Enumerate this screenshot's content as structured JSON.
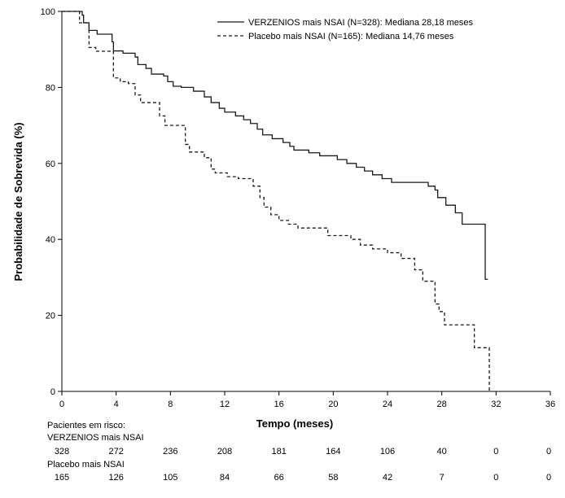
{
  "chart_data": {
    "type": "line",
    "xlabel": "Tempo (meses)",
    "ylabel": "Probabilidade de Sobrevida (%)",
    "xlim": [
      0,
      36
    ],
    "ylim": [
      0,
      100
    ],
    "xticks": [
      "0",
      "4",
      "8",
      "12",
      "16",
      "20",
      "24",
      "28",
      "32",
      "36"
    ],
    "yticks": [
      "0",
      "20",
      "40",
      "60",
      "80",
      "100"
    ],
    "grid": false,
    "legend_position": "top-right",
    "series": [
      {
        "name": "VERZENIOS mais NSAI (N=328): Mediana 28,18 meses",
        "style": "solid",
        "color": "#1a1a1a",
        "points": [
          [
            0,
            100
          ],
          [
            1.5,
            99
          ],
          [
            1.6,
            97
          ],
          [
            2,
            95
          ],
          [
            2.6,
            94
          ],
          [
            3.7,
            92
          ],
          [
            3.8,
            89.6
          ],
          [
            4.5,
            89
          ],
          [
            5.4,
            88
          ],
          [
            5.6,
            86
          ],
          [
            6.2,
            85
          ],
          [
            6.6,
            83.5
          ],
          [
            7.5,
            83
          ],
          [
            7.8,
            81.5
          ],
          [
            8.2,
            80.3
          ],
          [
            8.8,
            80
          ],
          [
            9.7,
            79
          ],
          [
            10.5,
            77.5
          ],
          [
            11,
            76
          ],
          [
            11.6,
            74.5
          ],
          [
            12,
            73.5
          ],
          [
            12.8,
            72.5
          ],
          [
            13.4,
            71.5
          ],
          [
            13.9,
            70.5
          ],
          [
            14.4,
            69
          ],
          [
            14.8,
            67.5
          ],
          [
            15.5,
            66.5
          ],
          [
            16.3,
            65.5
          ],
          [
            16.8,
            64.5
          ],
          [
            17.1,
            63.5
          ],
          [
            18.2,
            62.8
          ],
          [
            19,
            62
          ],
          [
            20.3,
            61
          ],
          [
            21,
            60
          ],
          [
            21.7,
            59
          ],
          [
            22.3,
            58
          ],
          [
            22.9,
            57
          ],
          [
            23.6,
            56
          ],
          [
            24.3,
            55
          ],
          [
            27,
            54
          ],
          [
            27.5,
            53
          ],
          [
            27.7,
            51
          ],
          [
            28.3,
            49
          ],
          [
            29,
            47
          ],
          [
            29.5,
            44
          ],
          [
            31.2,
            44
          ],
          [
            31.2,
            29.5
          ],
          [
            31.4,
            29.5
          ]
        ]
      },
      {
        "name": "Placebo mais NSAI (N=165): Mediana 14,76 meses",
        "style": "dashed",
        "color": "#1a1a1a",
        "points": [
          [
            0,
            100
          ],
          [
            1.3,
            97
          ],
          [
            2,
            90.5
          ],
          [
            2.5,
            89.5
          ],
          [
            3.7,
            89.5
          ],
          [
            3.8,
            82.5
          ],
          [
            4.3,
            81.5
          ],
          [
            4.9,
            81
          ],
          [
            5.4,
            78
          ],
          [
            5.8,
            76
          ],
          [
            7.1,
            76
          ],
          [
            7.2,
            72.5
          ],
          [
            7.6,
            70
          ],
          [
            9,
            70
          ],
          [
            9.1,
            65
          ],
          [
            9.4,
            63
          ],
          [
            10.5,
            61.5
          ],
          [
            11,
            58.5
          ],
          [
            11.3,
            57.5
          ],
          [
            12.2,
            56.5
          ],
          [
            13,
            56
          ],
          [
            14.1,
            54
          ],
          [
            14.6,
            51
          ],
          [
            14.9,
            48.5
          ],
          [
            15.4,
            46.5
          ],
          [
            16,
            45
          ],
          [
            16.7,
            44
          ],
          [
            17.4,
            43
          ],
          [
            19.5,
            43
          ],
          [
            19.6,
            41
          ],
          [
            21.3,
            40
          ],
          [
            22,
            38.5
          ],
          [
            22.9,
            37.5
          ],
          [
            24,
            36.5
          ],
          [
            25,
            35
          ],
          [
            26,
            32
          ],
          [
            26.6,
            29
          ],
          [
            27.3,
            29
          ],
          [
            27.5,
            23
          ],
          [
            27.8,
            21
          ],
          [
            28.2,
            17.5
          ],
          [
            30.1,
            17.5
          ],
          [
            30.4,
            11.5
          ],
          [
            31.5,
            11.5
          ],
          [
            31.5,
            0
          ]
        ]
      }
    ],
    "risk_table": {
      "title": "Pacientes em risco:",
      "times": [
        0,
        4,
        8,
        12,
        16,
        20,
        24,
        28,
        32,
        36
      ],
      "rows": [
        {
          "label": "VERZENIOS mais NSAI",
          "values": [
            "328",
            "272",
            "236",
            "208",
            "181",
            "164",
            "106",
            "40",
            "0",
            "0"
          ]
        },
        {
          "label": "Placebo mais NSAI",
          "values": [
            "165",
            "126",
            "105",
            "84",
            "66",
            "58",
            "42",
            "7",
            "0",
            "0"
          ]
        }
      ]
    }
  }
}
